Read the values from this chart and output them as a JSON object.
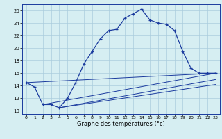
{
  "main_line_x": [
    0,
    1,
    2,
    3,
    4,
    5,
    6,
    7,
    8,
    9,
    10,
    11,
    12,
    13,
    14,
    15,
    16,
    17,
    18,
    19,
    20,
    21,
    22,
    23
  ],
  "main_line_y": [
    14.5,
    13.8,
    11.0,
    11.0,
    10.5,
    12.0,
    14.5,
    17.5,
    19.5,
    21.5,
    22.8,
    23.0,
    24.8,
    25.5,
    26.2,
    24.5,
    24.0,
    23.8,
    22.8,
    19.5,
    16.8,
    16.0,
    16.0,
    16.0
  ],
  "ref_line1_x": [
    0,
    23
  ],
  "ref_line1_y": [
    14.5,
    16.0
  ],
  "ref_line2_x": [
    2,
    23
  ],
  "ref_line2_y": [
    11.0,
    16.0
  ],
  "ref_line3_x": [
    4,
    23
  ],
  "ref_line3_y": [
    10.5,
    15.0
  ],
  "ref_line4_x": [
    4,
    23
  ],
  "ref_line4_y": [
    10.5,
    14.2
  ],
  "bg_color": "#d6eef2",
  "line_color": "#1a3a9e",
  "grid_color": "#aaccdd",
  "xlabel": "Graphe des températures (°c)",
  "xlim": [
    -0.5,
    23.5
  ],
  "ylim": [
    9.5,
    27
  ],
  "xticks": [
    0,
    1,
    2,
    3,
    4,
    5,
    6,
    7,
    8,
    9,
    10,
    11,
    12,
    13,
    14,
    15,
    16,
    17,
    18,
    19,
    20,
    21,
    22,
    23
  ],
  "yticks": [
    10,
    12,
    14,
    16,
    18,
    20,
    22,
    24,
    26
  ],
  "figw": 3.2,
  "figh": 2.0,
  "dpi": 100
}
